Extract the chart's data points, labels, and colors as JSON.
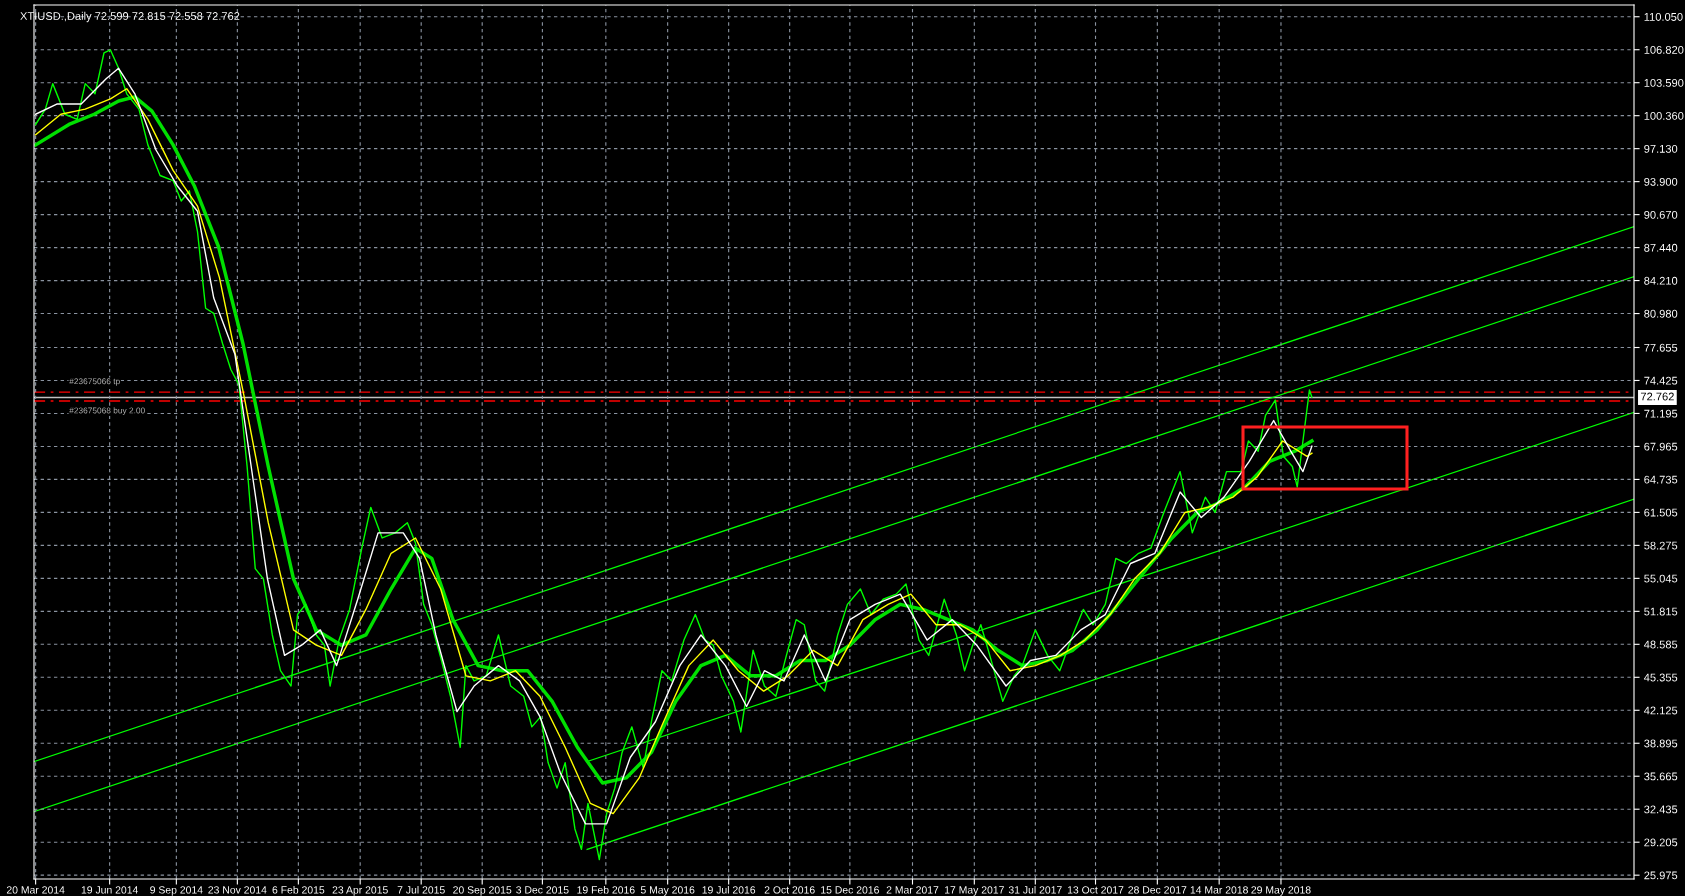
{
  "chart_data": {
    "type": "line",
    "title": "XTIUSD.,Daily 72.599 72.815 72.558 72.762",
    "xlim": [
      "2014-03-18",
      "2019-08-06"
    ],
    "xticks": [
      {
        "value": "2014-03-20",
        "label": "20 Mar 2014"
      },
      {
        "value": "2014-06-19",
        "label": "19 Jun 2014"
      },
      {
        "value": "2014-09-09",
        "label": "9 Sep 2014"
      },
      {
        "value": "2014-11-23",
        "label": "23 Nov 2014"
      },
      {
        "value": "2015-02-06",
        "label": "6 Feb 2015"
      },
      {
        "value": "2015-04-23",
        "label": "23 Apr 2015"
      },
      {
        "value": "2015-07-07",
        "label": "7 Jul 2015"
      },
      {
        "value": "2015-09-20",
        "label": "20 Sep 2015"
      },
      {
        "value": "2015-12-03",
        "label": "3 Dec 2015"
      },
      {
        "value": "2016-02-19",
        "label": "19 Feb 2016"
      },
      {
        "value": "2016-05-05",
        "label": "5 May 2016"
      },
      {
        "value": "2016-07-19",
        "label": "19 Jul 2016"
      },
      {
        "value": "2016-10-02",
        "label": "2 Oct 2016"
      },
      {
        "value": "2016-12-15",
        "label": "15 Dec 2016"
      },
      {
        "value": "2017-03-02",
        "label": "2 Mar 2017"
      },
      {
        "value": "2017-05-17",
        "label": "17 May 2017"
      },
      {
        "value": "2017-07-31",
        "label": "31 Jul 2017"
      },
      {
        "value": "2017-10-13",
        "label": "13 Oct 2017"
      },
      {
        "value": "2017-12-28",
        "label": "28 Dec 2017"
      },
      {
        "value": "2018-03-14",
        "label": "14 Mar 2018"
      },
      {
        "value": "2018-05-29",
        "label": "29 May 2018"
      }
    ],
    "ylim": [
      25.6,
      111.2
    ],
    "yticks": [
      {
        "value": 25.975,
        "label": "25.975"
      },
      {
        "value": 29.205,
        "label": "29.205"
      },
      {
        "value": 32.435,
        "label": "32.435"
      },
      {
        "value": 35.665,
        "label": "35.665"
      },
      {
        "value": 38.895,
        "label": "38.895"
      },
      {
        "value": 42.125,
        "label": "42.125"
      },
      {
        "value": 45.355,
        "label": "45.355"
      },
      {
        "value": 48.585,
        "label": "48.585"
      },
      {
        "value": 51.815,
        "label": "51.815"
      },
      {
        "value": 55.045,
        "label": "55.045"
      },
      {
        "value": 58.275,
        "label": "58.275"
      },
      {
        "value": 61.505,
        "label": "61.505"
      },
      {
        "value": 64.735,
        "label": "64.735"
      },
      {
        "value": 67.965,
        "label": "67.965"
      },
      {
        "value": 71.195,
        "label": "71.195"
      },
      {
        "value": 74.425,
        "label": "74.425"
      },
      {
        "value": 77.655,
        "label": "77.655"
      },
      {
        "value": 80.98,
        "label": "80.980"
      },
      {
        "value": 84.21,
        "label": "84.210"
      },
      {
        "value": 87.44,
        "label": "87.440"
      },
      {
        "value": 90.67,
        "label": "90.670"
      },
      {
        "value": 93.9,
        "label": "93.900"
      },
      {
        "value": 97.13,
        "label": "97.130"
      },
      {
        "value": 100.36,
        "label": "100.360"
      },
      {
        "value": 103.59,
        "label": "103.590"
      },
      {
        "value": 106.82,
        "label": "106.820"
      },
      {
        "value": 110.05,
        "label": "110.050"
      }
    ],
    "grid": true,
    "legend": false,
    "series": [
      {
        "color": "#00ff00",
        "x": [
          "2014-03-20",
          "2014-04-01",
          "2014-04-10",
          "2014-04-25",
          "2014-05-10",
          "2014-05-20",
          "2014-06-01",
          "2014-06-12",
          "2014-06-20",
          "2014-06-30",
          "2014-07-10",
          "2014-07-25",
          "2014-08-05",
          "2014-08-20",
          "2014-09-05",
          "2014-09-15",
          "2014-09-25",
          "2014-10-05",
          "2014-10-15",
          "2014-10-25",
          "2014-11-05",
          "2014-11-15",
          "2014-11-25",
          "2014-12-05",
          "2014-12-15",
          "2014-12-25",
          "2015-01-05",
          "2015-01-15",
          "2015-01-28",
          "2015-02-05",
          "2015-02-15",
          "2015-02-28",
          "2015-03-10",
          "2015-03-17",
          "2015-03-28",
          "2015-04-10",
          "2015-04-25",
          "2015-05-06",
          "2015-05-20",
          "2015-06-05",
          "2015-06-20",
          "2015-06-30",
          "2015-07-10",
          "2015-07-20",
          "2015-08-01",
          "2015-08-12",
          "2015-08-24",
          "2015-08-31",
          "2015-09-10",
          "2015-09-25",
          "2015-10-10",
          "2015-10-25",
          "2015-11-10",
          "2015-11-20",
          "2015-12-01",
          "2015-12-10",
          "2015-12-21",
          "2015-12-31",
          "2016-01-12",
          "2016-01-20",
          "2016-01-28",
          "2016-02-11",
          "2016-02-20",
          "2016-03-01",
          "2016-03-10",
          "2016-03-22",
          "2016-04-05",
          "2016-04-15",
          "2016-04-28",
          "2016-05-10",
          "2016-05-25",
          "2016-06-08",
          "2016-06-20",
          "2016-06-30",
          "2016-07-10",
          "2016-07-25",
          "2016-08-03",
          "2016-08-18",
          "2016-09-01",
          "2016-09-15",
          "2016-09-28",
          "2016-10-10",
          "2016-10-20",
          "2016-11-03",
          "2016-11-14",
          "2016-11-30",
          "2016-12-12",
          "2016-12-28",
          "2017-01-10",
          "2017-01-25",
          "2017-02-10",
          "2017-02-22",
          "2017-03-10",
          "2017-03-22",
          "2017-04-10",
          "2017-04-25",
          "2017-05-05",
          "2017-05-15",
          "2017-05-25",
          "2017-06-05",
          "2017-06-21",
          "2017-07-05",
          "2017-07-15",
          "2017-07-31",
          "2017-08-15",
          "2017-08-30",
          "2017-09-15",
          "2017-09-28",
          "2017-10-10",
          "2017-10-25",
          "2017-11-07",
          "2017-11-20",
          "2017-12-05",
          "2017-12-20",
          "2018-01-05",
          "2018-01-25",
          "2018-02-09",
          "2018-02-25",
          "2018-03-09",
          "2018-03-23",
          "2018-04-10",
          "2018-04-19",
          "2018-05-01",
          "2018-05-10",
          "2018-05-22",
          "2018-06-01",
          "2018-06-12",
          "2018-06-18",
          "2018-06-25",
          "2018-07-03",
          "2018-07-06"
        ],
        "values": [
          99.5,
          101,
          103.5,
          100.5,
          100,
          103.5,
          102.5,
          106.5,
          106.8,
          105,
          102.5,
          101,
          97.5,
          94.5,
          94,
          92,
          93,
          89,
          81.5,
          81,
          78,
          75.5,
          74,
          66,
          56,
          55,
          49.5,
          46,
          44.5,
          51.5,
          52.5,
          49.5,
          48.5,
          44.5,
          49,
          52,
          58,
          62,
          59,
          59.5,
          60.5,
          58.5,
          52.5,
          50.5,
          47,
          43.5,
          38.5,
          46.5,
          45,
          45.5,
          49.5,
          44.5,
          43.5,
          40.5,
          41.5,
          37,
          34.5,
          37,
          30.5,
          28.5,
          33,
          27.5,
          32,
          34.5,
          38,
          40.5,
          36.5,
          41,
          46,
          45,
          49,
          51.5,
          49,
          48.5,
          45.5,
          43,
          40,
          48,
          44.5,
          43.5,
          47.5,
          51,
          50.5,
          45,
          44,
          49.5,
          52.5,
          54,
          51.5,
          53,
          53.5,
          54.5,
          49,
          47.5,
          53,
          49.5,
          46,
          48.5,
          50.5,
          47.5,
          43,
          45.5,
          46.5,
          50,
          47.5,
          46,
          49.5,
          52,
          50.5,
          52.5,
          57,
          56.5,
          57.5,
          58,
          61.5,
          65.5,
          59.5,
          63,
          61.5,
          65.5,
          65.5,
          68.5,
          67.5,
          71,
          72.5,
          67,
          66,
          64,
          68.5,
          73.5,
          72.8
        ]
      },
      {
        "color": "#ffffff",
        "x": [
          "2014-03-20",
          "2014-04-15",
          "2014-05-15",
          "2014-06-15",
          "2014-06-30",
          "2014-07-20",
          "2014-08-15",
          "2014-09-10",
          "2014-10-05",
          "2014-10-25",
          "2014-11-20",
          "2014-12-10",
          "2014-12-30",
          "2015-01-20",
          "2015-02-10",
          "2015-03-05",
          "2015-03-25",
          "2015-04-20",
          "2015-05-15",
          "2015-06-15",
          "2015-07-05",
          "2015-07-25",
          "2015-08-20",
          "2015-09-10",
          "2015-10-10",
          "2015-11-05",
          "2015-11-30",
          "2015-12-25",
          "2016-01-25",
          "2016-02-20",
          "2016-03-20",
          "2016-04-20",
          "2016-05-20",
          "2016-06-15",
          "2016-07-15",
          "2016-08-10",
          "2016-09-01",
          "2016-09-25",
          "2016-10-20",
          "2016-11-15",
          "2016-12-15",
          "2017-01-15",
          "2017-02-15",
          "2017-03-20",
          "2017-04-20",
          "2017-05-20",
          "2017-06-25",
          "2017-07-25",
          "2017-08-25",
          "2017-09-25",
          "2017-10-25",
          "2017-11-25",
          "2017-12-25",
          "2018-01-25",
          "2018-02-20",
          "2018-03-20",
          "2018-04-20",
          "2018-05-20",
          "2018-06-10",
          "2018-06-25",
          "2018-07-06"
        ],
        "values": [
          100.5,
          101.5,
          101.5,
          104,
          105,
          102.5,
          97,
          93.5,
          91,
          82.5,
          77,
          66,
          55,
          47.5,
          48.5,
          50,
          46.5,
          53,
          59.5,
          59.5,
          57,
          49.5,
          42,
          44.5,
          46.5,
          45,
          41.5,
          36,
          31,
          31,
          37.5,
          41,
          46.5,
          49.5,
          46.5,
          42.5,
          46,
          45,
          49.5,
          45,
          51,
          52.5,
          53.5,
          49,
          51,
          48.5,
          44.5,
          47,
          47.5,
          50,
          51.5,
          56.5,
          57.5,
          63.5,
          61,
          63,
          66.5,
          70.5,
          67.5,
          65.5,
          68
        ]
      },
      {
        "color": "#ffff00",
        "x": [
          "2014-03-20",
          "2014-04-20",
          "2014-05-20",
          "2014-06-20",
          "2014-07-10",
          "2014-08-05",
          "2014-09-05",
          "2014-10-05",
          "2014-11-01",
          "2014-12-01",
          "2014-12-31",
          "2015-01-31",
          "2015-02-28",
          "2015-03-31",
          "2015-04-30",
          "2015-05-31",
          "2015-06-30",
          "2015-07-31",
          "2015-08-31",
          "2015-09-30",
          "2015-10-31",
          "2015-11-30",
          "2015-12-31",
          "2016-01-31",
          "2016-02-28",
          "2016-03-31",
          "2016-04-30",
          "2016-05-31",
          "2016-06-30",
          "2016-07-31",
          "2016-08-31",
          "2016-09-30",
          "2016-10-31",
          "2016-11-30",
          "2016-12-31",
          "2017-01-31",
          "2017-02-28",
          "2017-03-31",
          "2017-04-30",
          "2017-05-31",
          "2017-06-30",
          "2017-07-31",
          "2017-08-31",
          "2017-09-30",
          "2017-10-31",
          "2017-11-30",
          "2017-12-31",
          "2018-01-31",
          "2018-02-28",
          "2018-03-31",
          "2018-04-30",
          "2018-05-31",
          "2018-06-30",
          "2018-07-06"
        ],
        "values": [
          98.5,
          100.5,
          101,
          102,
          103,
          100,
          95,
          91.5,
          84.5,
          73,
          60.5,
          50,
          48.5,
          47.5,
          52,
          57.5,
          59,
          54,
          45.5,
          45,
          46,
          43.5,
          38.5,
          33,
          32,
          35.5,
          41,
          46.5,
          49,
          46,
          44,
          45.5,
          48,
          46.5,
          51,
          52.5,
          53.5,
          50.5,
          50.5,
          49,
          46,
          46.5,
          47.5,
          49,
          51.5,
          55,
          57.5,
          61.5,
          62,
          63,
          65,
          68.5,
          67,
          67.3
        ]
      },
      {
        "color": "#00e000",
        "x": [
          "2014-03-20",
          "2014-04-30",
          "2014-05-31",
          "2014-06-30",
          "2014-07-20",
          "2014-08-10",
          "2014-09-05",
          "2014-10-01",
          "2014-10-31",
          "2014-11-30",
          "2014-12-31",
          "2015-01-31",
          "2015-02-28",
          "2015-03-31",
          "2015-04-30",
          "2015-05-31",
          "2015-06-30",
          "2015-07-20",
          "2015-08-15",
          "2015-09-15",
          "2015-10-15",
          "2015-11-15",
          "2015-12-15",
          "2016-01-15",
          "2016-02-15",
          "2016-03-15",
          "2016-04-15",
          "2016-05-15",
          "2016-06-15",
          "2016-07-15",
          "2016-08-15",
          "2016-09-15",
          "2016-10-15",
          "2016-11-15",
          "2016-12-15",
          "2017-01-15",
          "2017-02-15",
          "2017-03-15",
          "2017-04-15",
          "2017-05-15",
          "2017-06-15",
          "2017-07-15",
          "2017-08-15",
          "2017-09-15",
          "2017-10-15",
          "2017-11-15",
          "2017-12-15",
          "2018-01-15",
          "2018-02-15",
          "2018-03-15",
          "2018-04-15",
          "2018-05-15",
          "2018-06-15",
          "2018-07-06"
        ],
        "values": [
          97.5,
          99.5,
          100.5,
          101.8,
          102.2,
          100.8,
          97.5,
          93.5,
          87.5,
          78,
          66,
          55,
          50,
          48.5,
          49.5,
          54,
          58,
          57,
          51,
          46.5,
          46,
          46,
          43,
          38.5,
          35,
          35.5,
          38,
          43,
          46.5,
          47.5,
          45.5,
          45.5,
          47,
          47,
          48.5,
          51,
          52.5,
          52,
          51,
          50,
          48,
          46.5,
          47,
          48,
          50,
          53,
          56,
          59,
          61.5,
          62.5,
          64,
          66.5,
          67.5,
          68.5
        ]
      },
      {
        "color": "#00ff00",
        "x": [
          "2014-03-18",
          "2019-08-06"
        ],
        "values": [
          37.1,
          89.5
        ]
      },
      {
        "color": "#00ff00",
        "x": [
          "2014-03-18",
          "2019-08-06"
        ],
        "values": [
          32.2,
          84.6
        ]
      },
      {
        "color": "#00ff00",
        "x": [
          "2016-01-27",
          "2019-08-06"
        ],
        "values": [
          37.1,
          71.3
        ]
      },
      {
        "color": "#00ff00",
        "x": [
          "2016-01-27",
          "2019-08-06"
        ],
        "values": [
          28.5,
          62.8
        ]
      }
    ],
    "ref_lines": [
      {
        "axis": "y",
        "value": 72.762,
        "label": "72.762",
        "color": "#c0c0c0",
        "line_style": "solid"
      },
      {
        "axis": "y",
        "value": 73.28,
        "label": "#23675066 tp",
        "color": "#ff0000",
        "line_style": "dashed"
      },
      {
        "axis": "y",
        "value": 72.42,
        "label": "#23675068 buy 2.00",
        "color": "#ff0000",
        "line_style": "dashed"
      }
    ]
  }
}
